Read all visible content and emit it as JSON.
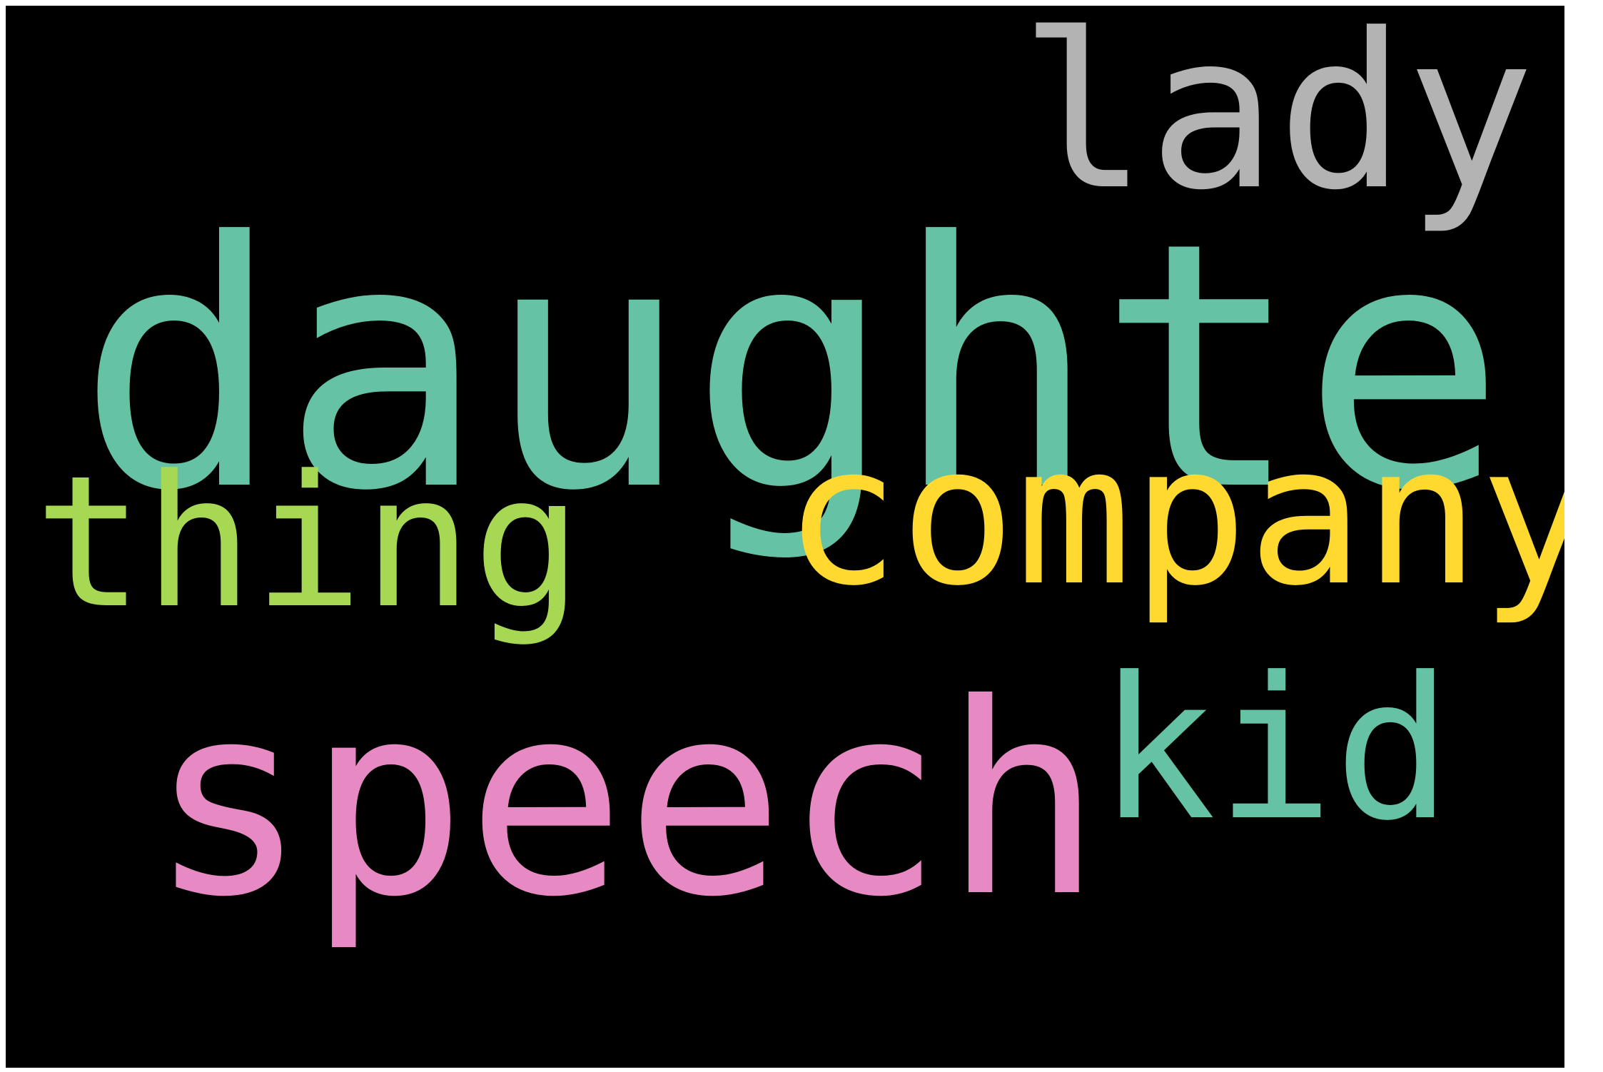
{
  "words": [
    {
      "id": "lady",
      "text": "lady",
      "color": "#b3b3b3"
    },
    {
      "id": "daughter",
      "text": "daughter",
      "color": "#66c2a5"
    },
    {
      "id": "thing",
      "text": "thing",
      "color": "#a6d854"
    },
    {
      "id": "company",
      "text": "company",
      "color": "#ffd92f"
    },
    {
      "id": "speech",
      "text": "speech",
      "color": "#e78ac3"
    },
    {
      "id": "kid",
      "text": "kid",
      "color": "#66c2a5"
    }
  ]
}
